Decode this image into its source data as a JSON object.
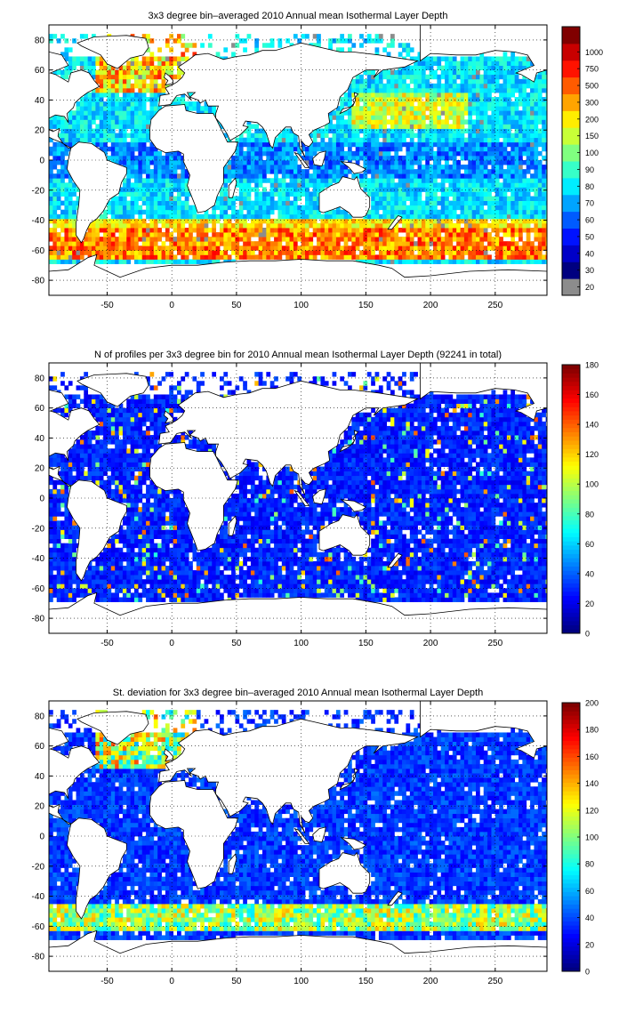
{
  "panels": [
    {
      "id": "mean",
      "title": "3x3 degree bin–averaged 2010 Annual mean Isothermal Layer Depth",
      "colorbar_ticks": [
        "20",
        "30",
        "40",
        "50",
        "60",
        "70",
        "80",
        "90",
        "100",
        "150",
        "200",
        "300",
        "500",
        "750",
        "1000"
      ],
      "colorbar_kind": "categorical"
    },
    {
      "id": "count",
      "title": "N of profiles per 3x3 degree bin for 2010 Annual mean Isothermal Layer Depth  (92241 in total)",
      "colorbar_ticks": [
        "0",
        "20",
        "40",
        "60",
        "80",
        "100",
        "120",
        "140",
        "160",
        "180"
      ],
      "colorbar_kind": "linear"
    },
    {
      "id": "std",
      "title": "St. deviation for 3x3 degree bin–averaged 2010 Annual mean Isothermal Layer Depth",
      "colorbar_ticks": [
        "0",
        "20",
        "40",
        "60",
        "80",
        "100",
        "120",
        "140",
        "160",
        "180",
        "200"
      ],
      "colorbar_kind": "linear"
    }
  ],
  "axes": {
    "x_ticks": [
      "-50",
      "0",
      "50",
      "100",
      "150",
      "200",
      "250"
    ],
    "y_ticks": [
      "80",
      "60",
      "40",
      "20",
      "0",
      "-20",
      "-40",
      "-60",
      "-80"
    ],
    "xlim": [
      -95,
      290
    ],
    "ylim": [
      -90,
      90
    ],
    "grid": "dotted"
  },
  "colors": {
    "missing_bin": "#8c8c8c",
    "land": "#ffffff",
    "coast": "#000000"
  }
}
